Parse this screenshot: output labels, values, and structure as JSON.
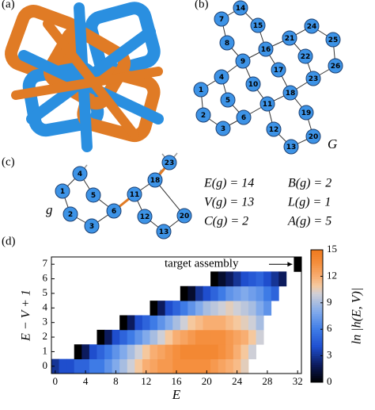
{
  "panels": {
    "a": "(a)",
    "b": "(b)",
    "c": "(c)",
    "d": "(d)"
  },
  "graph_G": {
    "name": "G",
    "nodes": [
      "1",
      "2",
      "3",
      "4",
      "5",
      "6",
      "7",
      "8",
      "9",
      "10",
      "11",
      "12",
      "13",
      "14",
      "15",
      "16",
      "17",
      "18",
      "19",
      "20",
      "21",
      "22",
      "23",
      "24",
      "25",
      "26"
    ]
  },
  "graph_g": {
    "name": "g",
    "nodes": [
      "1",
      "2",
      "3",
      "4",
      "5",
      "6",
      "11",
      "12",
      "13",
      "18",
      "20",
      "23"
    ]
  },
  "equations": [
    "E(g) = 14",
    "B(g) = 2",
    "V(g) = 13",
    "L(g) = 1",
    "C(g) = 2",
    "A(g) = 5"
  ],
  "chart_data": {
    "type": "heatmap",
    "xlabel": "E",
    "ylabel": "E − V + 1",
    "annotation": "target assembly",
    "x": [
      0,
      1,
      2,
      3,
      4,
      5,
      6,
      7,
      8,
      9,
      10,
      11,
      12,
      13,
      14,
      15,
      16,
      17,
      18,
      19,
      20,
      21,
      22,
      23,
      24,
      25,
      26,
      27,
      28,
      29,
      30,
      31,
      32
    ],
    "y": [
      0,
      1,
      2,
      3,
      4,
      5,
      6,
      7
    ],
    "z": [
      [
        3,
        4,
        4,
        5,
        5,
        6,
        6,
        7,
        8,
        9,
        10,
        11,
        12,
        12.5,
        13,
        13,
        13.5,
        13.5,
        13.5,
        13.5,
        13.5,
        13,
        12.5,
        12,
        11.5,
        10.5,
        null,
        null,
        null,
        null,
        null,
        null,
        null
      ],
      [
        null,
        null,
        null,
        0,
        2,
        4,
        5,
        6,
        7,
        8,
        9,
        10,
        11,
        12,
        12.5,
        13,
        13.5,
        14,
        14,
        14,
        14,
        14,
        13.5,
        13,
        12,
        11,
        10,
        null,
        null,
        null,
        null,
        null,
        null
      ],
      [
        null,
        null,
        null,
        null,
        null,
        null,
        0,
        2,
        4,
        5,
        6,
        7,
        8,
        9,
        10,
        11,
        12,
        12.5,
        13,
        13.5,
        13.5,
        13.5,
        13.5,
        13,
        12.5,
        12,
        11,
        10,
        null,
        null,
        null,
        null,
        null
      ],
      [
        null,
        null,
        null,
        null,
        null,
        null,
        null,
        null,
        null,
        0,
        2,
        4,
        5,
        6,
        7,
        8,
        9,
        10,
        11,
        11.5,
        12,
        12,
        12,
        11.5,
        11,
        10.5,
        10,
        9,
        null,
        null,
        null,
        null,
        null
      ],
      [
        null,
        null,
        null,
        null,
        null,
        null,
        null,
        null,
        null,
        null,
        null,
        null,
        null,
        0,
        2,
        4,
        5,
        6,
        7,
        8,
        9,
        9.5,
        10,
        10.5,
        10,
        9.5,
        9,
        8,
        7,
        null,
        null,
        null,
        null
      ],
      [
        null,
        null,
        null,
        null,
        null,
        null,
        null,
        null,
        null,
        null,
        null,
        null,
        null,
        null,
        null,
        null,
        null,
        0,
        1,
        3,
        4,
        5,
        6,
        7,
        7.5,
        8,
        7.5,
        7,
        6,
        5,
        null,
        null,
        null
      ],
      [
        null,
        null,
        null,
        null,
        null,
        null,
        null,
        null,
        null,
        null,
        null,
        null,
        null,
        null,
        null,
        null,
        null,
        null,
        null,
        null,
        null,
        0,
        1,
        2,
        3,
        4,
        4.5,
        5,
        4,
        3,
        2,
        null,
        null
      ],
      [
        null,
        null,
        null,
        null,
        null,
        null,
        null,
        null,
        null,
        null,
        null,
        null,
        null,
        null,
        null,
        null,
        null,
        null,
        null,
        null,
        null,
        null,
        null,
        null,
        null,
        null,
        null,
        null,
        null,
        null,
        null,
        null,
        0
      ]
    ],
    "xlim": [
      -0.5,
      32.5
    ],
    "ylim": [
      -0.5,
      7.5
    ],
    "xticks": [
      0,
      4,
      8,
      12,
      16,
      20,
      24,
      28,
      32
    ],
    "yticks": [
      0,
      1,
      2,
      3,
      4,
      5,
      6,
      7
    ],
    "colorbar": {
      "label": "ln |h(E, V)|",
      "lim": [
        0,
        15
      ],
      "ticks": [
        0,
        3,
        6,
        9,
        12,
        15
      ]
    }
  }
}
